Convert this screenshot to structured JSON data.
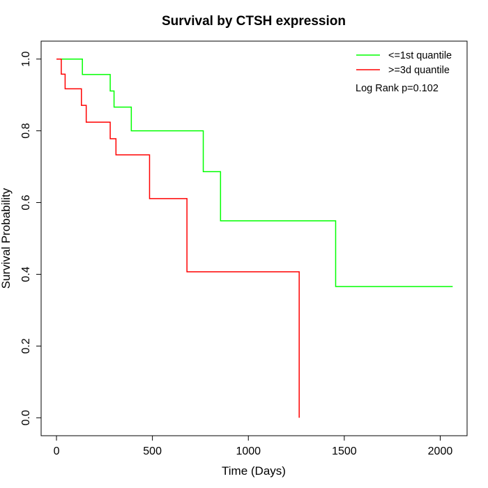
{
  "chart_data": {
    "type": "line",
    "title": "Survival by CTSH expression",
    "xlabel": "Time (Days)",
    "ylabel": "Survival Probability",
    "xlim": [
      -80,
      2140
    ],
    "ylim": [
      -0.05,
      1.05
    ],
    "x_ticks": [
      0,
      500,
      1000,
      1500,
      2000
    ],
    "y_ticks": [
      0.0,
      0.2,
      0.4,
      0.6,
      0.8,
      1.0
    ],
    "x_tick_labels": [
      "0",
      "500",
      "1000",
      "1500",
      "2000"
    ],
    "y_tick_labels": [
      "0.0",
      "0.2",
      "0.4",
      "0.6",
      "0.8",
      "1.0"
    ],
    "grid": false,
    "legend_position": "top-right",
    "annotation": "Log Rank p=0.102",
    "series": [
      {
        "name": "<=1st quantile",
        "color": "#00ff00",
        "step": true,
        "x": [
          0,
          135,
          280,
          300,
          390,
          765,
          855,
          1455,
          2065
        ],
        "y": [
          1.0,
          0.957,
          0.911,
          0.866,
          0.8,
          0.686,
          0.549,
          0.366,
          0.366
        ]
      },
      {
        "name": ">=3d quantile",
        "color": "#ff0000",
        "step": true,
        "x": [
          0,
          25,
          45,
          130,
          155,
          280,
          310,
          485,
          680,
          1265,
          1265
        ],
        "y": [
          1.0,
          0.958,
          0.917,
          0.871,
          0.824,
          0.778,
          0.733,
          0.611,
          0.407,
          0.407,
          0.0
        ]
      }
    ]
  }
}
